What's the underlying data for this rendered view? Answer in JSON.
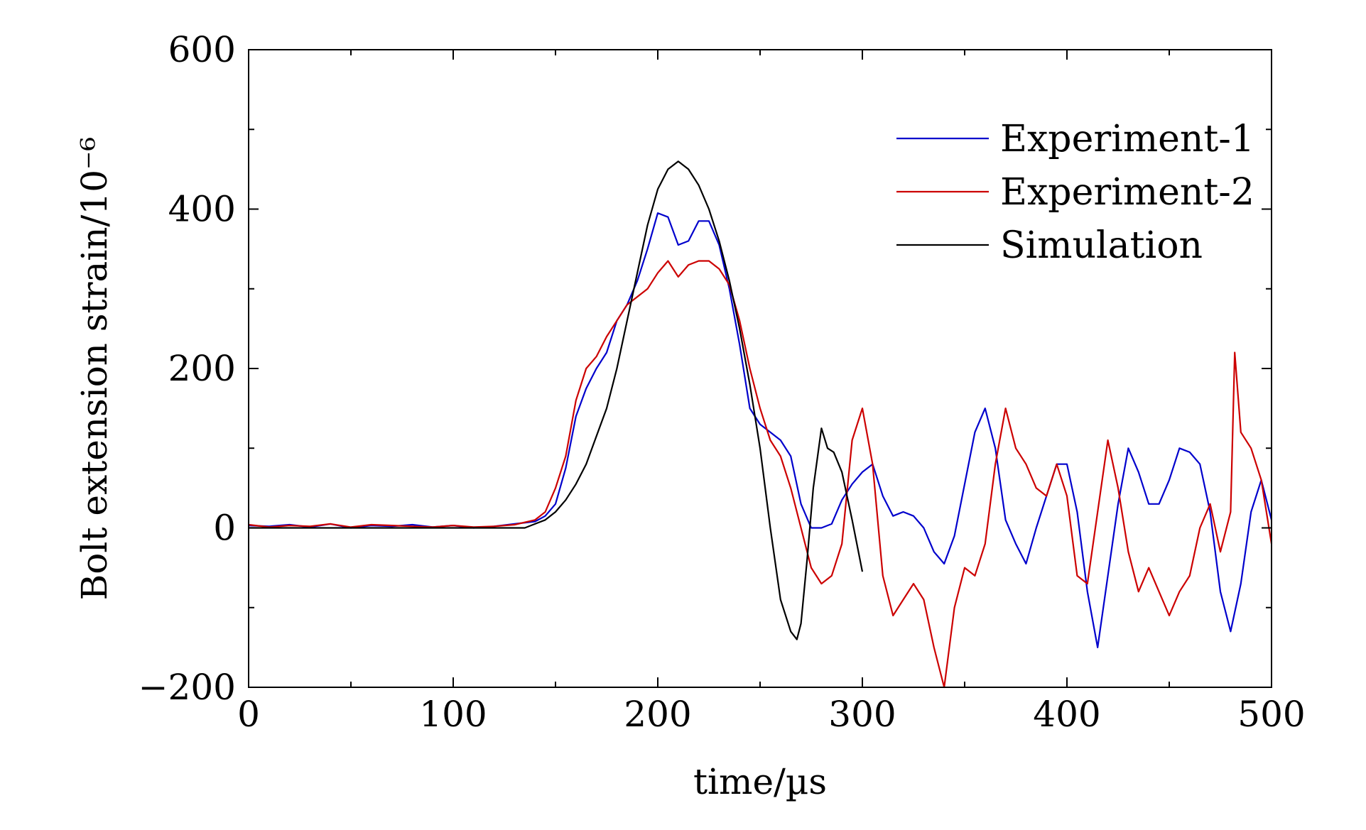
{
  "chart_data": {
    "type": "line",
    "title": "",
    "xlabel": "time/µs",
    "ylabel": "Bolt extension strain/10⁻⁶",
    "xlim": [
      0,
      500
    ],
    "ylim": [
      -200,
      600
    ],
    "xticks": [
      0,
      100,
      200,
      300,
      400,
      500
    ],
    "yticks": [
      -200,
      0,
      200,
      400,
      600
    ],
    "xtick_labels": [
      "0",
      "100",
      "200",
      "300",
      "400",
      "500"
    ],
    "ytick_labels": [
      "−200",
      "0",
      "200",
      "400",
      "600"
    ],
    "grid": false,
    "legend_position": "top-right",
    "series": [
      {
        "name": "Experiment-1",
        "color": "#0000cc",
        "x": [
          0,
          10,
          20,
          30,
          40,
          50,
          60,
          70,
          80,
          90,
          100,
          110,
          120,
          130,
          140,
          145,
          150,
          155,
          160,
          165,
          170,
          175,
          180,
          185,
          190,
          195,
          200,
          205,
          210,
          215,
          220,
          225,
          230,
          235,
          240,
          245,
          250,
          255,
          260,
          265,
          270,
          275,
          280,
          285,
          290,
          295,
          300,
          305,
          310,
          315,
          320,
          325,
          330,
          335,
          340,
          345,
          350,
          355,
          360,
          365,
          370,
          375,
          380,
          385,
          390,
          395,
          400,
          405,
          410,
          415,
          420,
          425,
          430,
          435,
          440,
          445,
          450,
          455,
          460,
          465,
          470,
          475,
          480,
          485,
          490,
          495,
          500
        ],
        "values": [
          3,
          2,
          4,
          1,
          5,
          0,
          3,
          2,
          4,
          1,
          3,
          0,
          2,
          5,
          8,
          15,
          30,
          75,
          140,
          175,
          200,
          220,
          260,
          280,
          310,
          350,
          395,
          390,
          355,
          360,
          385,
          385,
          355,
          300,
          230,
          150,
          130,
          120,
          110,
          90,
          30,
          0,
          0,
          5,
          35,
          55,
          70,
          80,
          40,
          15,
          20,
          15,
          0,
          -30,
          -45,
          -10,
          55,
          120,
          150,
          100,
          10,
          -20,
          -45,
          0,
          40,
          80,
          80,
          20,
          -80,
          -150,
          -60,
          30,
          100,
          70,
          30,
          30,
          60,
          100,
          95,
          80,
          20,
          -80,
          -130,
          -70,
          20,
          60,
          10
        ]
      },
      {
        "name": "Experiment-2",
        "color": "#cc0000",
        "x": [
          0,
          10,
          20,
          30,
          40,
          50,
          60,
          70,
          80,
          90,
          100,
          110,
          120,
          130,
          140,
          145,
          150,
          155,
          160,
          165,
          170,
          175,
          180,
          185,
          190,
          195,
          200,
          205,
          210,
          215,
          220,
          225,
          230,
          235,
          240,
          245,
          250,
          255,
          260,
          265,
          270,
          275,
          280,
          285,
          290,
          295,
          300,
          305,
          310,
          315,
          320,
          325,
          330,
          335,
          340,
          345,
          350,
          355,
          360,
          365,
          370,
          375,
          380,
          385,
          390,
          395,
          400,
          405,
          410,
          415,
          420,
          425,
          430,
          435,
          440,
          445,
          450,
          455,
          460,
          465,
          470,
          475,
          480,
          482,
          485,
          490,
          495,
          500
        ],
        "values": [
          4,
          1,
          3,
          2,
          5,
          1,
          4,
          3,
          2,
          1,
          3,
          1,
          2,
          4,
          10,
          20,
          50,
          90,
          160,
          200,
          215,
          240,
          260,
          280,
          290,
          300,
          320,
          335,
          315,
          330,
          335,
          335,
          325,
          305,
          260,
          200,
          150,
          110,
          90,
          50,
          0,
          -50,
          -70,
          -60,
          -20,
          110,
          150,
          80,
          -60,
          -110,
          -90,
          -70,
          -90,
          -150,
          -200,
          -100,
          -50,
          -60,
          -20,
          80,
          150,
          100,
          80,
          50,
          40,
          80,
          40,
          -60,
          -70,
          20,
          110,
          50,
          -30,
          -80,
          -50,
          -80,
          -110,
          -80,
          -60,
          0,
          30,
          -30,
          20,
          220,
          120,
          100,
          60,
          -20
        ]
      },
      {
        "name": "Simulation",
        "color": "#000000",
        "x": [
          0,
          20,
          40,
          60,
          80,
          100,
          120,
          130,
          135,
          140,
          145,
          150,
          155,
          160,
          165,
          170,
          175,
          180,
          185,
          190,
          195,
          200,
          205,
          210,
          215,
          220,
          225,
          230,
          235,
          240,
          245,
          250,
          255,
          260,
          265,
          268,
          270,
          273,
          276,
          280,
          283,
          286,
          290,
          295,
          300
        ],
        "values": [
          0,
          0,
          0,
          0,
          0,
          0,
          0,
          0,
          0,
          5,
          10,
          20,
          35,
          55,
          80,
          115,
          150,
          200,
          260,
          320,
          380,
          425,
          450,
          460,
          450,
          430,
          400,
          360,
          310,
          250,
          180,
          100,
          0,
          -90,
          -130,
          -140,
          -120,
          -40,
          50,
          125,
          100,
          95,
          70,
          10,
          -55
        ]
      }
    ]
  }
}
